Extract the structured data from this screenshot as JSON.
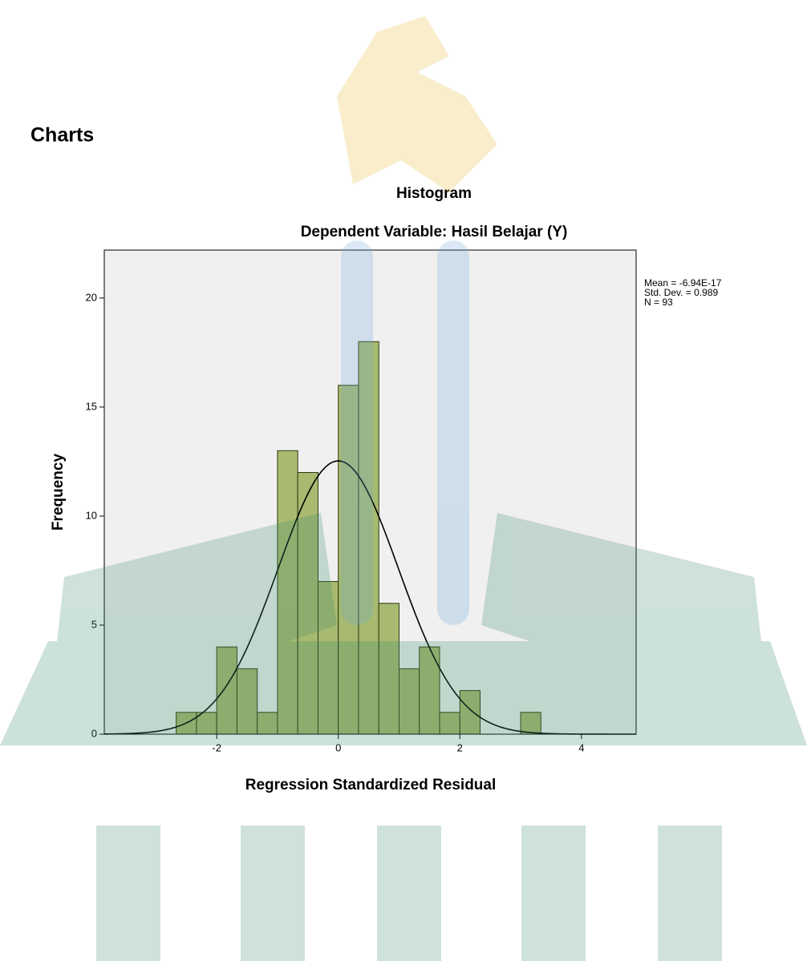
{
  "heading": "Charts",
  "chart_data": {
    "type": "histogram",
    "title": "Histogram",
    "subtitle": "Dependent Variable: Hasil Belajar (Y)",
    "x_label": "Regression Standardized Residual",
    "y_label": "Frequency",
    "bins": [
      -2.667,
      -2.333,
      -2,
      -1.667,
      -1.333,
      -1,
      -0.667,
      -0.333,
      0,
      0.333,
      0.667,
      1,
      1.333,
      1.667,
      2,
      2.333,
      2.667,
      3,
      3.333
    ],
    "values": [
      1,
      1,
      4,
      3,
      1,
      13,
      12,
      7,
      16,
      18,
      6,
      3,
      4,
      1,
      2,
      0,
      0,
      1
    ],
    "color": "#a8ba70",
    "edge_color": "#2f3a10",
    "background": "#f0f0f0",
    "curve_color": "#000000",
    "xlim": [
      -3.85,
      4.9
    ],
    "ylim": [
      0,
      22.2
    ],
    "xticks": [
      -2,
      0,
      2,
      4
    ],
    "yticks": [
      0,
      5,
      10,
      15,
      20
    ],
    "mean": {
      "value": -6.94e-17,
      "label": "Mean = -6.94E-17"
    },
    "std_dev": {
      "value": 0.989,
      "label": "Std. Dev. = 0.989"
    },
    "n": {
      "value": 93,
      "label": "N = 93"
    }
  }
}
